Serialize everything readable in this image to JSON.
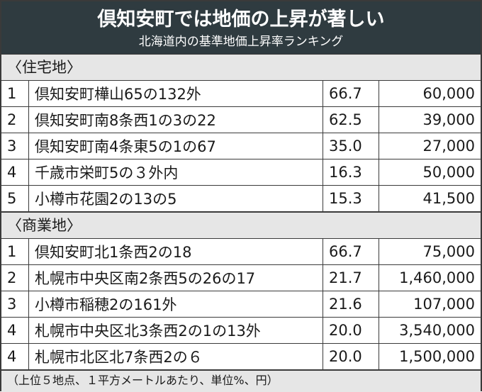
{
  "header": {
    "title": "倶知安町では地価の上昇が著しい",
    "subtitle": "北海道内の基準地価上昇率ランキング"
  },
  "sections": [
    {
      "label": "〈住宅地〉",
      "rows": [
        {
          "rank": "1",
          "location": "倶知安町樺山65の132外",
          "rate": "66.7",
          "price": "60,000"
        },
        {
          "rank": "2",
          "location": "倶知安町南8条西1の3の22",
          "rate": "62.5",
          "price": "39,000"
        },
        {
          "rank": "3",
          "location": "倶知安町南4条東5の1の67",
          "rate": "35.0",
          "price": "27,000"
        },
        {
          "rank": "4",
          "location": "千歳市栄町5の３外内",
          "rate": "16.3",
          "price": "50,000"
        },
        {
          "rank": "5",
          "location": "小樽市花園2の13の5",
          "rate": "15.3",
          "price": "41,500"
        }
      ]
    },
    {
      "label": "〈商業地〉",
      "rows": [
        {
          "rank": "1",
          "location": "倶知安町北1条西2の18",
          "rate": "66.7",
          "price": "75,000"
        },
        {
          "rank": "2",
          "location": "札幌市中央区南2条西5の26の17",
          "rate": "21.7",
          "price": "1,460,000"
        },
        {
          "rank": "3",
          "location": "小樽市稲穂2の161外",
          "rate": "21.6",
          "price": "107,000"
        },
        {
          "rank": "4",
          "location": "札幌市中央区北3条西2の1の13外",
          "rate": "20.0",
          "price": "3,540,000"
        },
        {
          "rank": "4",
          "location": "札幌市北区北7条西2の６",
          "rate": "20.0",
          "price": "1,500,000"
        }
      ]
    }
  ],
  "footnote": "（上位５地点、１平方メートルあたり、単位%、円）"
}
